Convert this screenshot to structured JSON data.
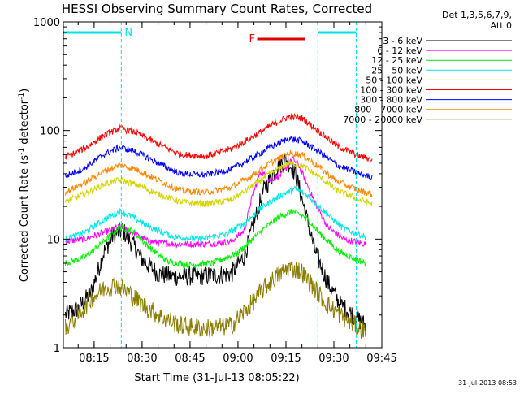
{
  "chart_data": {
    "type": "line",
    "title": "HESSI Observing Summary Count Rates, Corrected",
    "xlabel": "Start Time (31-Jul-13 08:05:22)",
    "ylabel": "Corrected Count Rate (s⁻¹ detector⁻¹)",
    "ylabel_parts": {
      "main": "Corrected Count Rate (s",
      "sup1": "-1",
      "mid": " detector",
      "sup2": "-1",
      "end": ")"
    },
    "y_scale": "log",
    "ylim": [
      1,
      1000
    ],
    "xlim": [
      "08:05:22",
      "09:45:00"
    ],
    "x_ticks": [
      "08:15",
      "08:30",
      "08:45",
      "09:00",
      "09:15",
      "09:30",
      "09:45"
    ],
    "y_ticks": [
      "1",
      "10",
      "100",
      "1000"
    ],
    "grid": false,
    "legend_placement": "right",
    "legend_header": [
      "Det 1,3,5,6,7,9,",
      "Att 0"
    ],
    "timestamp": "31-Jul-2013 08:53",
    "markers": [
      {
        "label": "N",
        "color": "#00e5e5",
        "start": "08:05:22",
        "end": "08:23:30"
      },
      {
        "label": "F",
        "color": "#e00000",
        "start": "09:06:00",
        "end": "09:21:00"
      },
      {
        "label": "",
        "color": "#00e5e5",
        "start": "09:25:00",
        "end": "09:37:00"
      }
    ],
    "vlines": [
      "08:23:30",
      "09:25:00",
      "09:37:00"
    ],
    "series": [
      {
        "name": "3 - 6 keV",
        "color": "#000000",
        "values": [
          [
            "08:06",
            2.0
          ],
          [
            "08:10",
            2.3
          ],
          [
            "08:14",
            3.2
          ],
          [
            "08:18",
            7.5
          ],
          [
            "08:21",
            11.0
          ],
          [
            "08:24",
            12.0
          ],
          [
            "08:27",
            9.0
          ],
          [
            "08:30",
            6.5
          ],
          [
            "08:35",
            4.8
          ],
          [
            "08:40",
            4.5
          ],
          [
            "08:50",
            4.6
          ],
          [
            "08:58",
            4.8
          ],
          [
            "09:02",
            7.0
          ],
          [
            "09:05",
            14.0
          ],
          [
            "09:08",
            28.0
          ],
          [
            "09:12",
            45.0
          ],
          [
            "09:15",
            55.0
          ],
          [
            "09:18",
            40.0
          ],
          [
            "09:21",
            18.0
          ],
          [
            "09:24",
            8.0
          ],
          [
            "09:28",
            4.0
          ],
          [
            "09:32",
            2.5
          ],
          [
            "09:36",
            2.0
          ],
          [
            "09:40",
            1.6
          ]
        ]
      },
      {
        "name": "6 - 12 keV",
        "color": "#ff00ff",
        "values": [
          [
            "08:06",
            9.5
          ],
          [
            "08:12",
            10.0
          ],
          [
            "08:18",
            11.5
          ],
          [
            "08:23",
            13.0
          ],
          [
            "08:27",
            11.5
          ],
          [
            "08:32",
            9.5
          ],
          [
            "08:40",
            9.0
          ],
          [
            "08:50",
            9.0
          ],
          [
            "08:58",
            9.5
          ],
          [
            "09:02",
            12.0
          ],
          [
            "09:04",
            22.0
          ],
          [
            "09:07",
            42.0
          ],
          [
            "09:10",
            35.0
          ],
          [
            "09:14",
            40.0
          ],
          [
            "09:17",
            55.0
          ],
          [
            "09:19",
            48.0
          ],
          [
            "09:21",
            35.0
          ],
          [
            "09:24",
            22.0
          ],
          [
            "09:28",
            13.0
          ],
          [
            "09:33",
            10.0
          ],
          [
            "09:40",
            9.0
          ]
        ]
      },
      {
        "name": "12 - 25 keV",
        "color": "#00ee00",
        "values": [
          [
            "08:06",
            6.0
          ],
          [
            "08:12",
            6.8
          ],
          [
            "08:18",
            9.5
          ],
          [
            "08:23",
            13.0
          ],
          [
            "08:27",
            12.0
          ],
          [
            "08:32",
            8.5
          ],
          [
            "08:38",
            6.2
          ],
          [
            "08:45",
            5.8
          ],
          [
            "08:52",
            6.0
          ],
          [
            "09:00",
            7.5
          ],
          [
            "09:06",
            11.0
          ],
          [
            "09:12",
            15.5
          ],
          [
            "09:17",
            18.0
          ],
          [
            "09:21",
            16.0
          ],
          [
            "09:26",
            11.0
          ],
          [
            "09:32",
            7.5
          ],
          [
            "09:40",
            6.0
          ]
        ]
      },
      {
        "name": "25 - 50 keV",
        "color": "#00e5e5",
        "values": [
          [
            "08:06",
            10.0
          ],
          [
            "08:12",
            11.5
          ],
          [
            "08:18",
            15.0
          ],
          [
            "08:23",
            18.0
          ],
          [
            "08:27",
            16.0
          ],
          [
            "08:32",
            13.0
          ],
          [
            "08:40",
            10.5
          ],
          [
            "08:48",
            10.0
          ],
          [
            "08:56",
            11.0
          ],
          [
            "09:02",
            14.0
          ],
          [
            "09:08",
            20.0
          ],
          [
            "09:14",
            26.0
          ],
          [
            "09:18",
            29.0
          ],
          [
            "09:22",
            25.0
          ],
          [
            "09:27",
            18.0
          ],
          [
            "09:33",
            12.5
          ],
          [
            "09:40",
            10.5
          ]
        ]
      },
      {
        "name": "50 - 100 keV",
        "color": "#d4d400",
        "values": [
          [
            "08:06",
            22.0
          ],
          [
            "08:12",
            26.0
          ],
          [
            "08:18",
            32.0
          ],
          [
            "08:23",
            35.0
          ],
          [
            "08:28",
            32.0
          ],
          [
            "08:35",
            26.0
          ],
          [
            "08:42",
            22.0
          ],
          [
            "08:50",
            21.0
          ],
          [
            "08:58",
            23.0
          ],
          [
            "09:04",
            30.0
          ],
          [
            "09:10",
            40.0
          ],
          [
            "09:16",
            50.0
          ],
          [
            "09:20",
            48.0
          ],
          [
            "09:25",
            38.0
          ],
          [
            "09:31",
            28.0
          ],
          [
            "09:38",
            23.0
          ],
          [
            "09:42",
            21.0
          ]
        ]
      },
      {
        "name": "100 - 300 keV",
        "color": "#ff0000",
        "values": [
          [
            "08:06",
            57.0
          ],
          [
            "08:12",
            68.0
          ],
          [
            "08:18",
            90.0
          ],
          [
            "08:23",
            105.0
          ],
          [
            "08:28",
            96.0
          ],
          [
            "08:35",
            75.0
          ],
          [
            "08:42",
            60.0
          ],
          [
            "08:50",
            58.0
          ],
          [
            "08:58",
            68.0
          ],
          [
            "09:04",
            85.0
          ],
          [
            "09:10",
            110.0
          ],
          [
            "09:16",
            135.0
          ],
          [
            "09:20",
            130.0
          ],
          [
            "09:25",
            100.0
          ],
          [
            "09:31",
            72.0
          ],
          [
            "09:38",
            58.0
          ],
          [
            "09:42",
            54.0
          ]
        ]
      },
      {
        "name": "300 - 800 keV",
        "color": "#0000ff",
        "values": [
          [
            "08:06",
            38.0
          ],
          [
            "08:12",
            45.0
          ],
          [
            "08:18",
            60.0
          ],
          [
            "08:23",
            70.0
          ],
          [
            "08:28",
            64.0
          ],
          [
            "08:35",
            50.0
          ],
          [
            "08:42",
            40.0
          ],
          [
            "08:50",
            39.0
          ],
          [
            "08:58",
            44.0
          ],
          [
            "09:04",
            55.0
          ],
          [
            "09:10",
            70.0
          ],
          [
            "09:16",
            85.0
          ],
          [
            "09:20",
            80.0
          ],
          [
            "09:25",
            65.0
          ],
          [
            "09:31",
            48.0
          ],
          [
            "09:38",
            40.0
          ],
          [
            "09:42",
            37.0
          ]
        ]
      },
      {
        "name": "800 - 7000 keV",
        "color": "#ff8800",
        "values": [
          [
            "08:06",
            27.0
          ],
          [
            "08:12",
            33.0
          ],
          [
            "08:18",
            42.0
          ],
          [
            "08:23",
            48.0
          ],
          [
            "08:28",
            44.0
          ],
          [
            "08:35",
            35.0
          ],
          [
            "08:42",
            28.0
          ],
          [
            "08:50",
            27.0
          ],
          [
            "08:58",
            30.0
          ],
          [
            "09:04",
            38.0
          ],
          [
            "09:10",
            50.0
          ],
          [
            "09:16",
            62.0
          ],
          [
            "09:20",
            60.0
          ],
          [
            "09:25",
            47.0
          ],
          [
            "09:31",
            34.0
          ],
          [
            "09:38",
            28.0
          ],
          [
            "09:42",
            26.0
          ]
        ]
      },
      {
        "name": "7000 - 20000 keV",
        "color": "#8b7d00",
        "values": [
          [
            "08:06",
            1.5
          ],
          [
            "08:10",
            2.0
          ],
          [
            "08:14",
            2.8
          ],
          [
            "08:18",
            3.5
          ],
          [
            "08:22",
            3.8
          ],
          [
            "08:26",
            3.2
          ],
          [
            "08:30",
            2.5
          ],
          [
            "08:35",
            2.0
          ],
          [
            "08:42",
            1.6
          ],
          [
            "08:50",
            1.5
          ],
          [
            "08:58",
            1.6
          ],
          [
            "09:04",
            2.5
          ],
          [
            "09:08",
            3.5
          ],
          [
            "09:12",
            4.5
          ],
          [
            "09:16",
            5.5
          ],
          [
            "09:20",
            5.0
          ],
          [
            "09:24",
            3.5
          ],
          [
            "09:28",
            2.5
          ],
          [
            "09:34",
            1.8
          ],
          [
            "09:40",
            1.4
          ]
        ]
      }
    ]
  }
}
